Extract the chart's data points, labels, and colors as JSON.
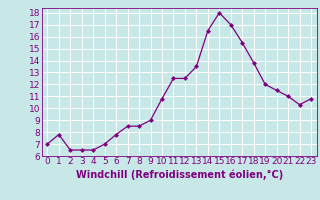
{
  "x": [
    0,
    1,
    2,
    3,
    4,
    5,
    6,
    7,
    8,
    9,
    10,
    11,
    12,
    13,
    14,
    15,
    16,
    17,
    18,
    19,
    20,
    21,
    22,
    23
  ],
  "y": [
    7.0,
    7.8,
    6.5,
    6.5,
    6.5,
    7.0,
    7.8,
    8.5,
    8.5,
    9.0,
    10.8,
    12.5,
    12.5,
    13.5,
    16.5,
    18.0,
    17.0,
    15.5,
    13.8,
    12.0,
    11.5,
    11.0,
    10.3,
    10.8
  ],
  "xlabel": "Windchill (Refroidissement éolien,°C)",
  "xlim": [
    -0.5,
    23.5
  ],
  "ylim": [
    6,
    18.4
  ],
  "yticks": [
    6,
    7,
    8,
    9,
    10,
    11,
    12,
    13,
    14,
    15,
    16,
    17,
    18
  ],
  "xticks": [
    0,
    1,
    2,
    3,
    4,
    5,
    6,
    7,
    8,
    9,
    10,
    11,
    12,
    13,
    14,
    15,
    16,
    17,
    18,
    19,
    20,
    21,
    22,
    23
  ],
  "line_color": "#800080",
  "marker_color": "#800080",
  "bg_color": "#C8E8E8",
  "grid_color": "#ffffff",
  "xlabel_color": "#800080",
  "xlabel_fontsize": 7,
  "tick_fontsize": 6.5,
  "tick_color": "#800080"
}
